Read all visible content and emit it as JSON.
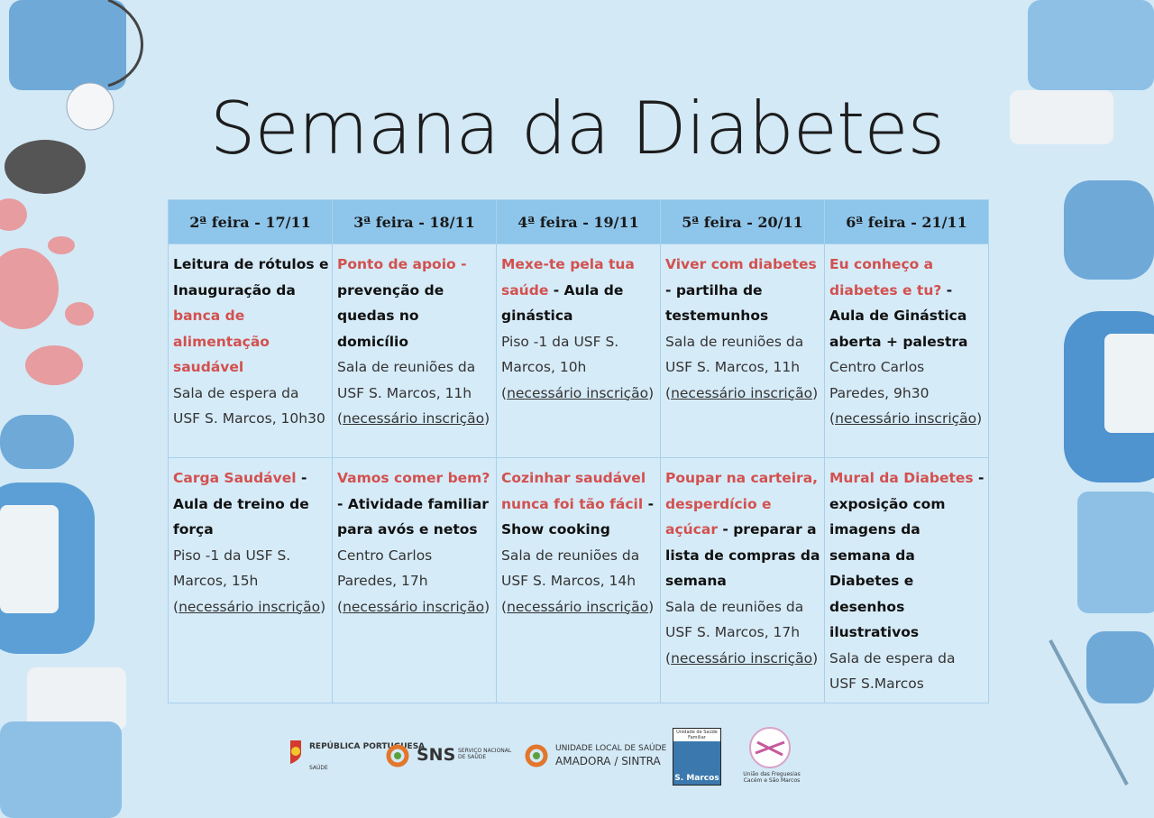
{
  "title": "Semana da Diabetes",
  "table": {
    "headers": [
      "2ª feira - 17/11",
      "3ª feira - 18/11",
      "4ª feira - 19/11",
      "5ª feira - 20/11",
      "6ª feira - 21/11"
    ],
    "rows": [
      [
        {
          "heading": [
            {
              "text": "Leitura de rótulos e Inauguração da ",
              "style": "bold"
            },
            {
              "text": "banca de alimentação saudável",
              "style": "red"
            }
          ],
          "location": "Sala de espera da USF S. Marcos, 10h30"
        },
        {
          "heading": [
            {
              "text": "Ponto de apoio - ",
              "style": "red"
            },
            {
              "text": "prevenção de quedas no domicílio",
              "style": "bold"
            }
          ],
          "location": "Sala de reuniões da USF S. Marcos, 11h",
          "note": [
            "(",
            "necessário inscrição",
            ")"
          ]
        },
        {
          "heading": [
            {
              "text": "Mexe-te pela tua saúde",
              "style": "red"
            },
            {
              "text": " - Aula de ginástica",
              "style": "bold"
            }
          ],
          "location": "Piso -1 da USF S. Marcos, 10h",
          "note": [
            "(",
            "necessário inscrição",
            ")"
          ]
        },
        {
          "heading": [
            {
              "text": "Viver com diabetes",
              "style": "red"
            },
            {
              "text": " - partilha de testemunhos",
              "style": "bold"
            }
          ],
          "location": "Sala de reuniões da USF S. Marcos, 11h",
          "note": [
            "(",
            "necessário inscrição",
            ")"
          ]
        },
        {
          "heading": [
            {
              "text": "Eu conheço a diabetes e tu?",
              "style": "red"
            },
            {
              "text": " - Aula de Ginástica aberta + palestra",
              "style": "bold"
            }
          ],
          "location": "Centro Carlos Paredes, 9h30",
          "note": [
            "(",
            "necessário inscrição",
            ")"
          ]
        }
      ],
      [
        {
          "heading": [
            {
              "text": "Carga Saudável",
              "style": "red"
            },
            {
              "text": " - Aula de treino de força",
              "style": "bold"
            }
          ],
          "location": "Piso -1 da USF S. Marcos, 15h",
          "note": [
            "(",
            "necessário inscrição",
            ")"
          ]
        },
        {
          "heading": [
            {
              "text": "Vamos comer bem?",
              "style": "red"
            },
            {
              "text": "- Atividade familiar para avós e netos",
              "style": "bold"
            }
          ],
          "location": "Centro Carlos Paredes, 17h",
          "note": [
            "(",
            "necessário inscrição",
            ")"
          ]
        },
        {
          "heading": [
            {
              "text": "Cozinhar saudável nunca foi tão fácil",
              "style": "red"
            },
            {
              "text": " - Show cooking",
              "style": "bold"
            }
          ],
          "location": "Sala de reuniões da USF S. Marcos, 14h",
          "note": [
            "(",
            "necessário inscrição",
            ")"
          ]
        },
        {
          "heading": [
            {
              "text": "Poupar na carteira, desperdício e açúcar",
              "style": "red"
            },
            {
              "text": " - preparar a lista de compras da semana",
              "style": "bold"
            }
          ],
          "location": "Sala de reuniões da USF S. Marcos, 17h",
          "note": [
            "(",
            "necessário inscrição",
            ")"
          ]
        },
        {
          "heading": [
            {
              "text": "Mural  da Diabetes",
              "style": "red"
            },
            {
              "text": " - exposição com imagens da semana da Diabetes e desenhos ilustrativos",
              "style": "bold"
            }
          ],
          "location": "Sala de espera da USF S.Marcos"
        }
      ]
    ]
  },
  "logos": {
    "republica": {
      "name": "REPÚBLICA PORTUGUESA",
      "sub": "SAÚDE"
    },
    "sns": {
      "name": "SNS",
      "sub": "SERVIÇO NACIONAL DE SAÚDE"
    },
    "uls": {
      "name": "UNIDADE LOCAL DE SAÚDE",
      "sub": "AMADORA / SINTRA"
    },
    "usf": {
      "name": "Unidade de Saúde Familiar",
      "sub": "S. Marcos"
    },
    "freguesia": {
      "name": "União das Freguesias Cacém e São Marcos"
    }
  }
}
